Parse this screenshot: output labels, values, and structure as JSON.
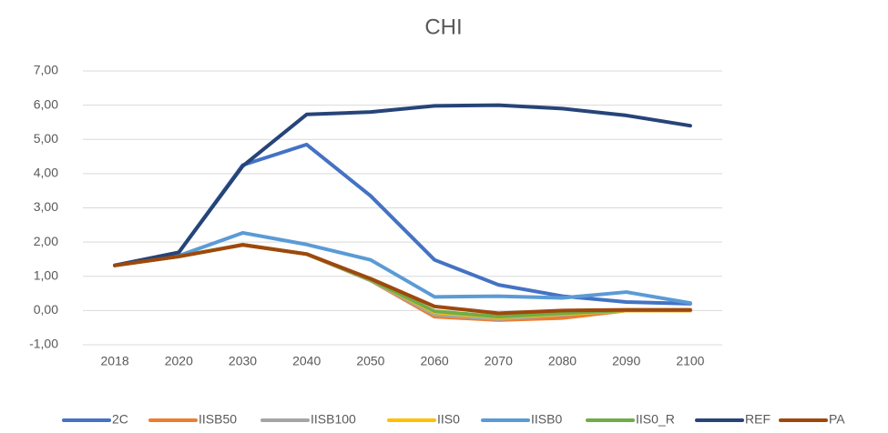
{
  "chart_data": {
    "type": "line",
    "title": "CHI",
    "categories": [
      "2018",
      "2020",
      "2030",
      "2040",
      "2050",
      "2060",
      "2070",
      "2080",
      "2090",
      "2100"
    ],
    "series": [
      {
        "name": "2C",
        "color": "#4472c4",
        "values": [
          1.32,
          1.7,
          4.25,
          4.85,
          3.35,
          1.48,
          0.75,
          0.42,
          0.25,
          0.2
        ]
      },
      {
        "name": "IISB50",
        "color": "#ed7d31",
        "values": [
          1.32,
          1.58,
          1.92,
          1.65,
          0.88,
          -0.18,
          -0.28,
          -0.22,
          0.0,
          0.0
        ]
      },
      {
        "name": "IISB100",
        "color": "#a5a5a5",
        "values": [
          1.32,
          1.58,
          1.92,
          1.65,
          0.88,
          -0.12,
          -0.25,
          -0.12,
          0.0,
          0.0
        ]
      },
      {
        "name": "IIS0",
        "color": "#ffc000",
        "values": [
          1.32,
          1.58,
          1.92,
          1.65,
          0.9,
          -0.05,
          -0.2,
          -0.1,
          0.0,
          0.0
        ]
      },
      {
        "name": "IISB0",
        "color": "#5b9bd5",
        "values": [
          1.32,
          1.6,
          2.27,
          1.93,
          1.48,
          0.4,
          0.42,
          0.37,
          0.54,
          0.22
        ]
      },
      {
        "name": "IIS0_R",
        "color": "#70ad47",
        "values": [
          1.32,
          1.58,
          1.92,
          1.65,
          0.9,
          -0.02,
          -0.18,
          -0.08,
          0.01,
          0.01
        ]
      },
      {
        "name": "REF",
        "color": "#264478",
        "values": [
          1.32,
          1.7,
          4.22,
          5.73,
          5.8,
          5.98,
          6.0,
          5.9,
          5.7,
          5.4
        ]
      },
      {
        "name": "PA",
        "color": "#9e480e",
        "values": [
          1.32,
          1.58,
          1.92,
          1.65,
          0.93,
          0.12,
          -0.08,
          0.0,
          0.02,
          0.02
        ]
      }
    ],
    "ylim": [
      -1,
      7
    ],
    "yticks": [
      {
        "value": -1,
        "label": "-1,00"
      },
      {
        "value": 0,
        "label": "0,00"
      },
      {
        "value": 1,
        "label": "1,00"
      },
      {
        "value": 2,
        "label": "2,00"
      },
      {
        "value": 3,
        "label": "3,00"
      },
      {
        "value": 4,
        "label": "4,00"
      },
      {
        "value": 5,
        "label": "5,00"
      },
      {
        "value": 6,
        "label": "6,00"
      },
      {
        "value": 7,
        "label": "7,00"
      }
    ],
    "grid": true,
    "legend": "bottom"
  }
}
